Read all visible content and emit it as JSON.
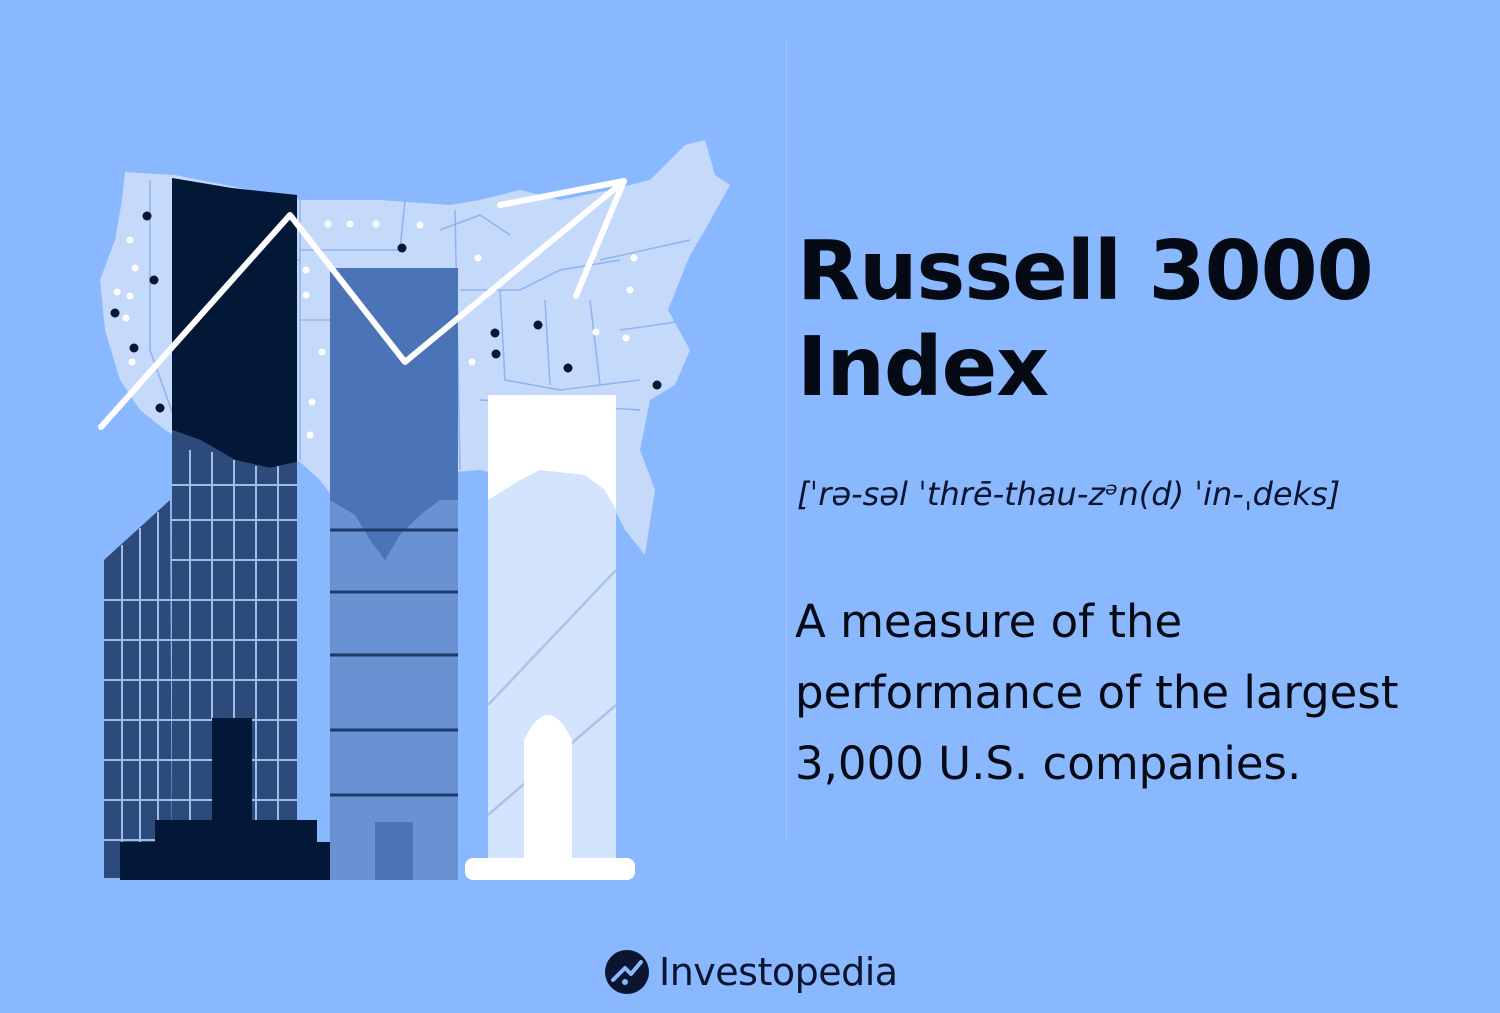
{
  "title_lines": [
    "Russell 3000",
    "Index"
  ],
  "pronunciation": "[ˈrə-səl ˈthrē-thau-zᵊn(d) ˈin-ˌdeks]",
  "definition_lines": [
    "A measure of the",
    "performance of the largest",
    "3,000 U.S. companies."
  ],
  "brand": {
    "name": "Investopedia",
    "logo_icon": "investopedia-logo-icon"
  },
  "colors": {
    "background": "#8ab8ff",
    "map": "#c5d9fb",
    "navy": "#021836",
    "mid_blue": "#4a73b8",
    "light_blue": "#5f8ac8",
    "white": "#ffffff"
  },
  "illustration": {
    "icons": [
      "us-map-icon",
      "rising-arrow-icon",
      "skyscraper-icon"
    ]
  }
}
